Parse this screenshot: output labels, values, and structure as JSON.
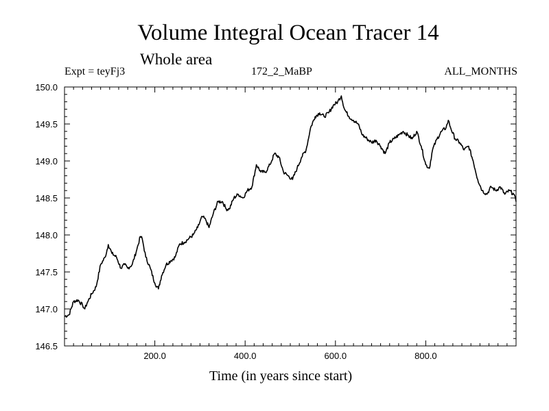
{
  "header": {
    "title": "Volume Integral Ocean Tracer 14",
    "subtitle": "Whole area",
    "expt": "Expt = teyFj3",
    "run": "172_2_MaBP",
    "months": "ALL_MONTHS"
  },
  "chart_data": {
    "type": "line",
    "xlabel": "Time (in years since start)",
    "ylabel": "",
    "xlim": [
      0,
      1000
    ],
    "ylim": [
      146.5,
      150.0
    ],
    "x_tick_labels": [
      "200.0",
      "400.0",
      "600.0",
      "800.0"
    ],
    "y_tick_labels": [
      "146.5",
      "147.0",
      "147.5",
      "148.0",
      "148.5",
      "149.0",
      "149.5",
      "150.0"
    ],
    "grid": false,
    "series": [
      {
        "x": [
          0,
          10,
          20,
          30,
          40,
          45,
          50,
          60,
          70,
          80,
          90,
          97,
          105,
          115,
          125,
          133,
          140,
          150,
          160,
          168,
          172,
          180,
          190,
          200,
          208,
          215,
          225,
          235,
          245,
          255,
          265,
          275,
          285,
          295,
          305,
          313,
          320,
          330,
          340,
          350,
          358,
          365,
          375,
          385,
          395,
          405,
          415,
          425,
          435,
          445,
          455,
          465,
          475,
          485,
          495,
          505,
          515,
          525,
          535,
          545,
          555,
          565,
          575,
          585,
          595,
          605,
          613,
          620,
          630,
          640,
          650,
          660,
          670,
          680,
          690,
          700,
          710,
          720,
          730,
          740,
          750,
          760,
          770,
          780,
          790,
          800,
          808,
          815,
          825,
          835,
          845,
          850,
          855,
          865,
          875,
          885,
          895,
          905,
          915,
          925,
          935,
          945,
          955,
          965,
          975,
          985,
          995,
          1000
        ],
        "y": [
          146.9,
          146.92,
          147.1,
          147.12,
          147.05,
          147.0,
          147.08,
          147.2,
          147.3,
          147.6,
          147.7,
          147.87,
          147.75,
          147.7,
          147.55,
          147.6,
          147.55,
          147.6,
          147.8,
          147.98,
          147.95,
          147.7,
          147.55,
          147.35,
          147.27,
          147.45,
          147.6,
          147.65,
          147.7,
          147.88,
          147.9,
          147.95,
          148.0,
          148.1,
          148.25,
          148.2,
          148.1,
          148.3,
          148.45,
          148.45,
          148.35,
          148.35,
          148.5,
          148.55,
          148.5,
          148.6,
          148.65,
          148.95,
          148.85,
          148.85,
          148.95,
          149.1,
          149.05,
          148.85,
          148.8,
          148.75,
          148.9,
          149.05,
          149.15,
          149.45,
          149.6,
          149.65,
          149.6,
          149.65,
          149.75,
          149.8,
          149.88,
          149.7,
          149.6,
          149.55,
          149.5,
          149.35,
          149.3,
          149.25,
          149.28,
          149.2,
          149.1,
          149.25,
          149.3,
          149.35,
          149.4,
          149.35,
          149.3,
          149.4,
          149.2,
          148.95,
          148.9,
          149.15,
          149.3,
          149.4,
          149.45,
          149.55,
          149.45,
          149.3,
          149.25,
          149.15,
          149.2,
          149.0,
          148.75,
          148.6,
          148.55,
          148.65,
          148.6,
          148.65,
          148.55,
          148.6,
          148.55,
          148.45
        ]
      }
    ]
  }
}
